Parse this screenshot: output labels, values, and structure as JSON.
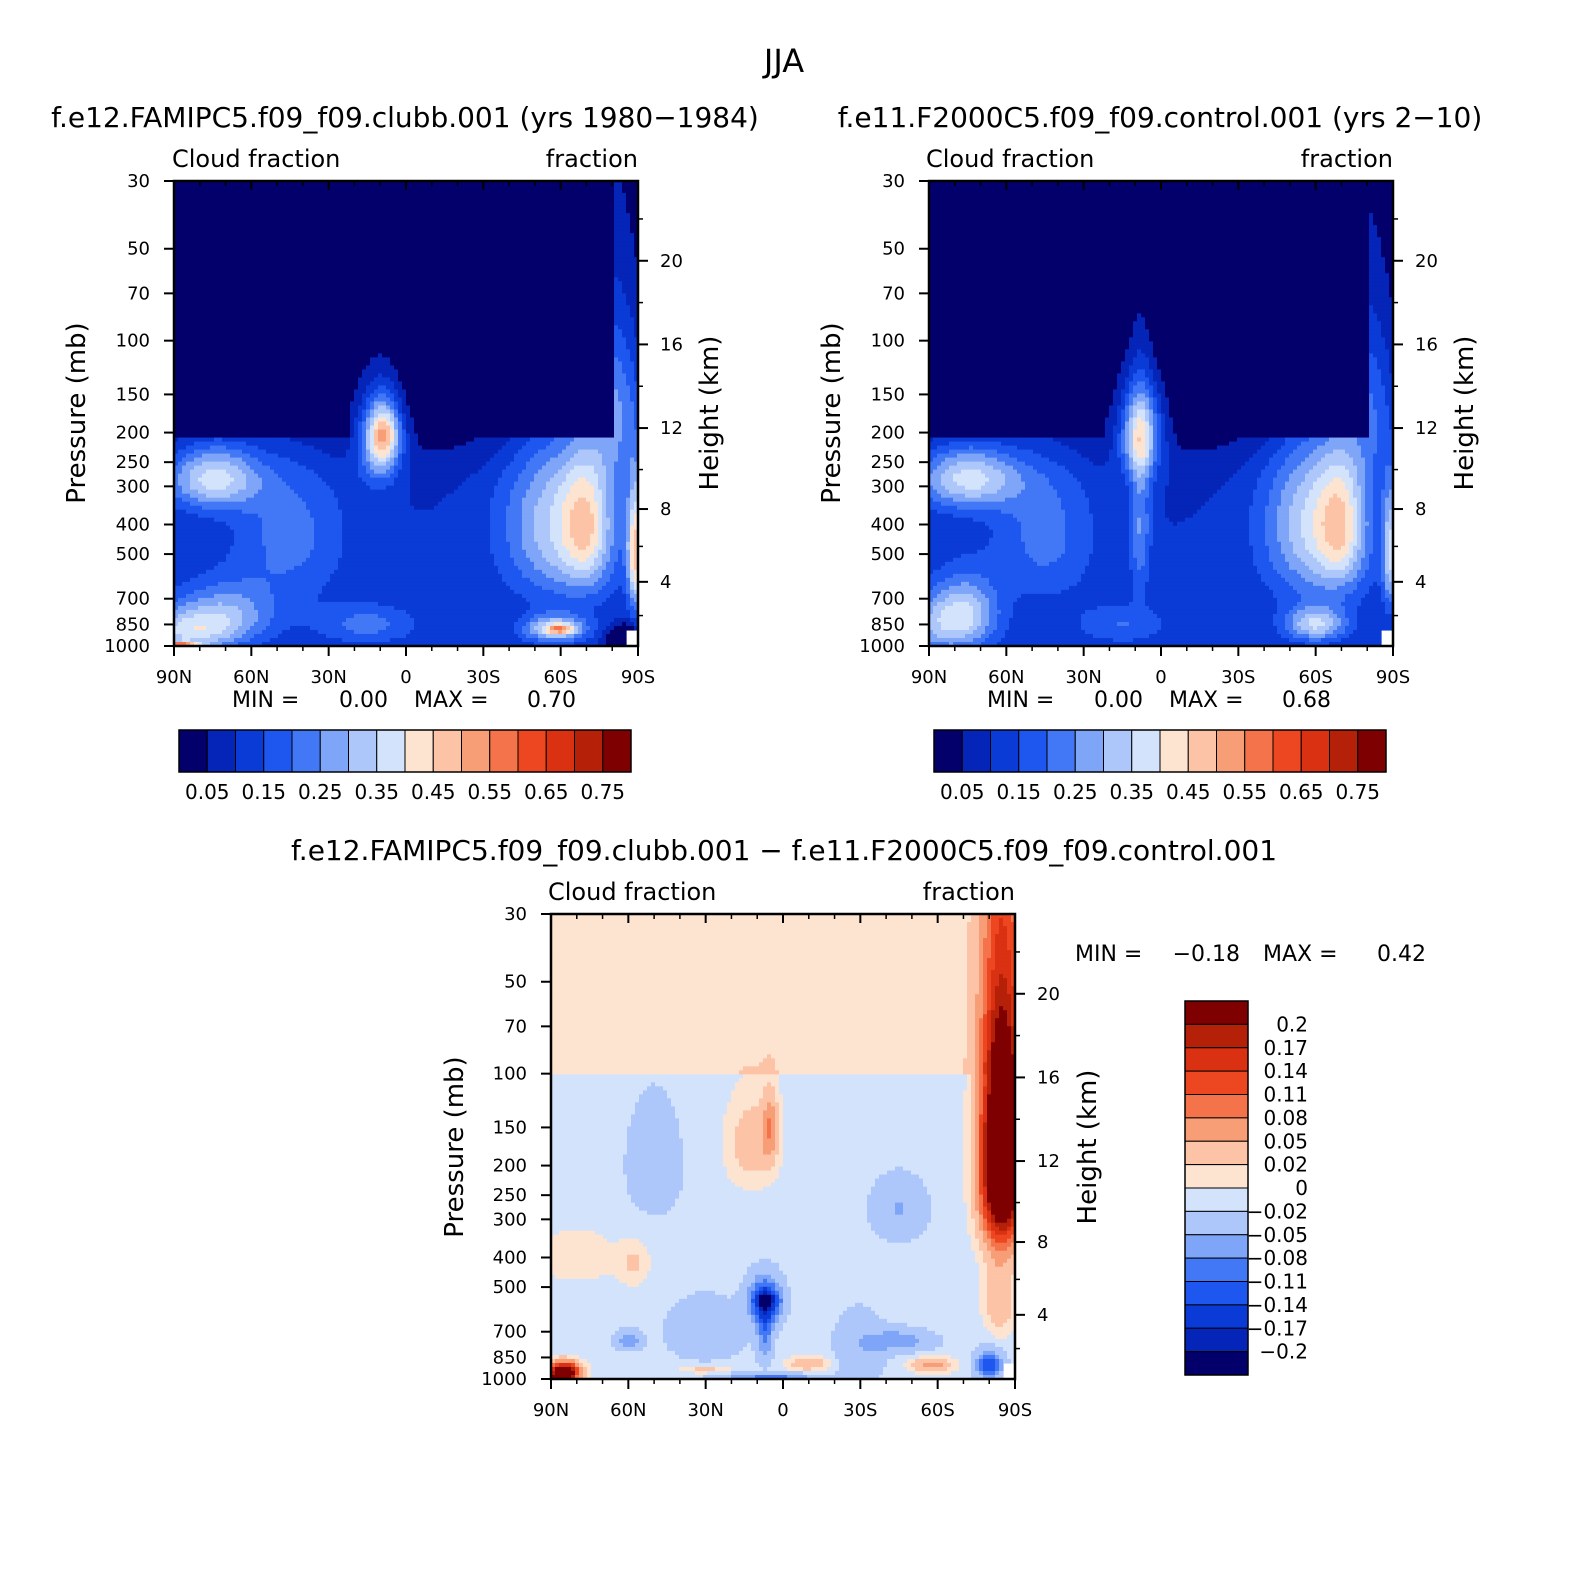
{
  "figure": {
    "title": "JJA"
  },
  "chart_data": [
    {
      "type": "heatmap",
      "id": "case",
      "title": "f.e12.FAMIPC5.f09_f09.clubb.001 (yrs 1980-1984)",
      "left_label": "Cloud fraction",
      "right_label": "fraction",
      "ylabel": "Pressure (mb)",
      "ylabel_right": "Height (km)",
      "x_ticks": [
        "90N",
        "60N",
        "30N",
        "0",
        "30S",
        "60S",
        "90S"
      ],
      "x_values": [
        90,
        60,
        30,
        0,
        -30,
        -60,
        -90
      ],
      "xlim": [
        90,
        -90
      ],
      "y_ticks": [
        30,
        50,
        70,
        100,
        150,
        200,
        250,
        300,
        400,
        500,
        700,
        850,
        1000
      ],
      "y_tick_labels": [
        "30",
        "50",
        "70",
        "100",
        "150",
        "200",
        "250",
        "300",
        "400",
        "500",
        "700",
        "850",
        "1000"
      ],
      "ylim": [
        30,
        1000
      ],
      "height_ticks": [
        20,
        16,
        12,
        8,
        4
      ],
      "height_tick_labels": [
        "20",
        "16",
        "12",
        "8",
        "4"
      ],
      "min_label": "MIN =",
      "min_value": "0.00",
      "max_label": "MAX =",
      "max_value": "0.70",
      "colorbar_orientation": "horizontal",
      "colorbar_labels": [
        "0.05",
        "0.15",
        "0.25",
        "0.35",
        "0.45",
        "0.55",
        "0.65",
        "0.75"
      ],
      "colorbar_colors": [
        "#03006b",
        "#0525b8",
        "#0b3bd6",
        "#1e56f0",
        "#4278f5",
        "#7ea5f7",
        "#adc7fb",
        "#d3e3fc",
        "#fde4d1",
        "#fcc3a6",
        "#f89e77",
        "#f5734a",
        "#ec4721",
        "#d93112",
        "#b52008",
        "#7e0000"
      ],
      "features": [
        {
          "lat": 75,
          "p": 280,
          "v": 0.28,
          "sx": 18,
          "sy": 70
        },
        {
          "lat": 85,
          "p": 900,
          "v": 0.22,
          "sx": 20,
          "sy": 150
        },
        {
          "lat": 88,
          "p": 990,
          "v": 0.32,
          "sx": 7,
          "sy": 22
        },
        {
          "lat": 70,
          "p": 780,
          "v": 0.17,
          "sx": 20,
          "sy": 180
        },
        {
          "lat": 45,
          "p": 430,
          "v": 0.12,
          "sx": 22,
          "sy": 260
        },
        {
          "lat": 15,
          "p": 850,
          "v": 0.12,
          "sx": 20,
          "sy": 130
        },
        {
          "lat": 10,
          "p": 210,
          "v": 0.33,
          "sx": 8,
          "sy": 70
        },
        {
          "lat": 8,
          "p": 200,
          "v": 0.17,
          "sx": 6,
          "sy": 40
        },
        {
          "lat": -60,
          "p": 400,
          "v": 0.25,
          "sx": 22,
          "sy": 270
        },
        {
          "lat": -70,
          "p": 400,
          "v": 0.18,
          "sx": 9,
          "sy": 220
        },
        {
          "lat": -58,
          "p": 880,
          "v": 0.28,
          "sx": 12,
          "sy": 90
        },
        {
          "lat": -60,
          "p": 880,
          "v": 0.2,
          "sx": 5,
          "sy": 30
        },
        {
          "lat": -82,
          "p": 160,
          "v": 0.2,
          "sx": 9,
          "sy": 100
        },
        {
          "lat": -89,
          "p": 500,
          "v": 0.35,
          "sx": 3,
          "sy": 230
        },
        {
          "lat": -85,
          "p": 960,
          "v": -0.3,
          "sx": 6,
          "sy": 90
        }
      ]
    },
    {
      "type": "heatmap",
      "id": "control",
      "title": "f.e11.F2000C5.f09_f09.control.001 (yrs 2-10)",
      "left_label": "Cloud fraction",
      "right_label": "fraction",
      "ylabel": "Pressure (mb)",
      "ylabel_right": "Height (km)",
      "x_ticks": [
        "90N",
        "60N",
        "30N",
        "0",
        "30S",
        "60S",
        "90S"
      ],
      "x_values": [
        90,
        60,
        30,
        0,
        -30,
        -60,
        -90
      ],
      "xlim": [
        90,
        -90
      ],
      "y_ticks": [
        30,
        50,
        70,
        100,
        150,
        200,
        250,
        300,
        400,
        500,
        700,
        850,
        1000
      ],
      "y_tick_labels": [
        "30",
        "50",
        "70",
        "100",
        "150",
        "200",
        "250",
        "300",
        "400",
        "500",
        "700",
        "850",
        "1000"
      ],
      "ylim": [
        30,
        1000
      ],
      "height_ticks": [
        20,
        16,
        12,
        8,
        4
      ],
      "height_tick_labels": [
        "20",
        "16",
        "12",
        "8",
        "4"
      ],
      "min_label": "MIN =",
      "min_value": "0.00",
      "max_label": "MAX =",
      "max_value": "0.68",
      "colorbar_orientation": "horizontal",
      "colorbar_labels": [
        "0.05",
        "0.15",
        "0.25",
        "0.35",
        "0.45",
        "0.55",
        "0.65",
        "0.75"
      ],
      "colorbar_colors": [
        "#03006b",
        "#0525b8",
        "#0b3bd6",
        "#1e56f0",
        "#4278f5",
        "#7ea5f7",
        "#adc7fb",
        "#d3e3fc",
        "#fde4d1",
        "#fcc3a6",
        "#f89e77",
        "#f5734a",
        "#ec4721",
        "#d93112",
        "#b52008",
        "#7e0000"
      ],
      "features": [
        {
          "lat": 75,
          "p": 280,
          "v": 0.28,
          "sx": 20,
          "sy": 70
        },
        {
          "lat": 85,
          "p": 850,
          "v": 0.2,
          "sx": 18,
          "sy": 200
        },
        {
          "lat": 75,
          "p": 750,
          "v": 0.15,
          "sx": 12,
          "sy": 200
        },
        {
          "lat": 45,
          "p": 430,
          "v": 0.12,
          "sx": 20,
          "sy": 260
        },
        {
          "lat": 15,
          "p": 850,
          "v": 0.1,
          "sx": 18,
          "sy": 130
        },
        {
          "lat": 8,
          "p": 200,
          "v": 0.34,
          "sx": 8,
          "sy": 70
        },
        {
          "lat": 8,
          "p": 400,
          "v": 0.15,
          "sx": 4,
          "sy": 250
        },
        {
          "lat": -60,
          "p": 400,
          "v": 0.26,
          "sx": 20,
          "sy": 270
        },
        {
          "lat": -70,
          "p": 400,
          "v": 0.18,
          "sx": 9,
          "sy": 220
        },
        {
          "lat": -60,
          "p": 850,
          "v": 0.25,
          "sx": 12,
          "sy": 110
        },
        {
          "lat": -82,
          "p": 160,
          "v": 0.15,
          "sx": 9,
          "sy": 100
        },
        {
          "lat": -89,
          "p": 500,
          "v": 0.25,
          "sx": 3,
          "sy": 220
        }
      ]
    },
    {
      "type": "heatmap",
      "id": "difference",
      "title": "f.e12.FAMIPC5.f09_f09.clubb.001 - f.e11.F2000C5.f09_f09.control.001",
      "left_label": "Cloud fraction",
      "right_label": "fraction",
      "ylabel": "Pressure (mb)",
      "ylabel_right": "Height (km)",
      "x_ticks": [
        "90N",
        "60N",
        "30N",
        "0",
        "30S",
        "60S",
        "90S"
      ],
      "x_values": [
        90,
        60,
        30,
        0,
        -30,
        -60,
        -90
      ],
      "xlim": [
        90,
        -90
      ],
      "y_ticks": [
        30,
        50,
        70,
        100,
        150,
        200,
        250,
        300,
        400,
        500,
        700,
        850,
        1000
      ],
      "y_tick_labels": [
        "30",
        "50",
        "70",
        "100",
        "150",
        "200",
        "250",
        "300",
        "400",
        "500",
        "700",
        "850",
        "1000"
      ],
      "ylim": [
        30,
        1000
      ],
      "height_ticks": [
        20,
        16,
        12,
        8,
        4
      ],
      "height_tick_labels": [
        "20",
        "16",
        "12",
        "8",
        "4"
      ],
      "min_label": "MIN =",
      "min_value": "-0.18",
      "max_label": "MAX =",
      "max_value": "0.42",
      "colorbar_orientation": "vertical",
      "colorbar_labels": [
        "0.2",
        "0.17",
        "0.14",
        "0.11",
        "0.08",
        "0.05",
        "0.02",
        "0",
        "-0.02",
        "-0.05",
        "-0.08",
        "-0.11",
        "-0.14",
        "-0.17",
        "-0.2"
      ],
      "colorbar_colors": [
        "#7e0000",
        "#b52008",
        "#d93112",
        "#ec4721",
        "#f5734a",
        "#f89e77",
        "#fcc3a6",
        "#fde4d1",
        "#d3e3fc",
        "#adc7fb",
        "#7ea5f7",
        "#4278f5",
        "#1e56f0",
        "#0b3bd6",
        "#0525b8",
        "#03006b"
      ],
      "features": [
        {
          "lat": 80,
          "p": 400,
          "v": 0.03,
          "sx": 15,
          "sy": 80
        },
        {
          "lat": 58,
          "p": 420,
          "v": 0.035,
          "sx": 6,
          "sy": 70
        },
        {
          "lat": 85,
          "p": 950,
          "v": 0.3,
          "sx": 6,
          "sy": 70
        },
        {
          "lat": 86,
          "p": 990,
          "v": 0.45,
          "sx": 3,
          "sy": 25
        },
        {
          "lat": 12,
          "p": 170,
          "v": 0.05,
          "sx": 10,
          "sy": 60
        },
        {
          "lat": 5,
          "p": 150,
          "v": 0.07,
          "sx": 3,
          "sy": 40
        },
        {
          "lat": 7,
          "p": 560,
          "v": -0.15,
          "sx": 6,
          "sy": 90
        },
        {
          "lat": 6,
          "p": 550,
          "v": -0.06,
          "sx": 5,
          "sy": 30
        },
        {
          "lat": 7,
          "p": 700,
          "v": -0.08,
          "sx": 3,
          "sy": 150
        },
        {
          "lat": 60,
          "p": 750,
          "v": -0.06,
          "sx": 5,
          "sy": 50
        },
        {
          "lat": 30,
          "p": 930,
          "v": 0.04,
          "sx": 10,
          "sy": 30
        },
        {
          "lat": -10,
          "p": 890,
          "v": 0.06,
          "sx": 8,
          "sy": 50
        },
        {
          "lat": 5,
          "p": 980,
          "v": -0.08,
          "sx": 18,
          "sy": 25
        },
        {
          "lat": -58,
          "p": 900,
          "v": 0.08,
          "sx": 8,
          "sy": 50
        },
        {
          "lat": -45,
          "p": 750,
          "v": -0.06,
          "sx": 12,
          "sy": 60
        },
        {
          "lat": -85,
          "p": 190,
          "v": 0.4,
          "sx": 8,
          "sy": 150
        },
        {
          "lat": -84,
          "p": 550,
          "v": 0.06,
          "sx": 6,
          "sy": 150
        },
        {
          "lat": -80,
          "p": 900,
          "v": -0.12,
          "sx": 5,
          "sy": 90
        },
        {
          "lat": -45,
          "p": 280,
          "v": -0.04,
          "sx": 10,
          "sy": 60
        },
        {
          "lat": 50,
          "p": 200,
          "v": -0.03,
          "sx": 10,
          "sy": 80
        },
        {
          "lat": 30,
          "p": 700,
          "v": -0.035,
          "sx": 14,
          "sy": 150
        },
        {
          "lat": -30,
          "p": 800,
          "v": -0.03,
          "sx": 10,
          "sy": 200
        }
      ]
    }
  ]
}
